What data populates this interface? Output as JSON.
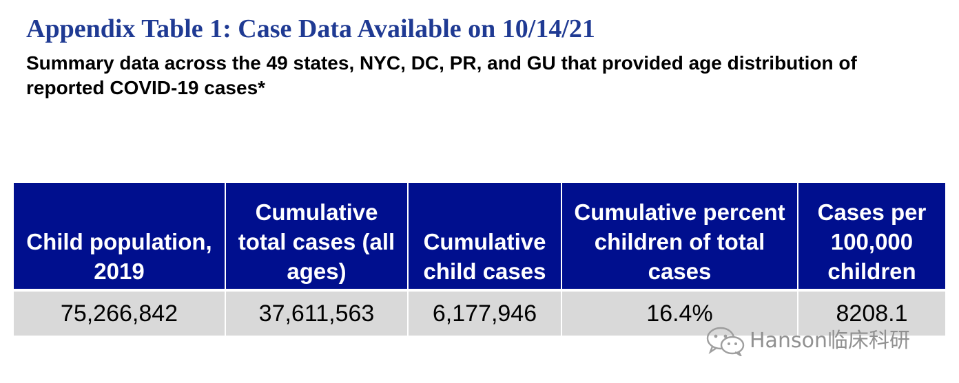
{
  "header": {
    "title": "Appendix Table 1: Case Data Available on 10/14/21",
    "subtitle": "Summary data across the 49 states, NYC, DC, PR, and GU that provided age distribution of reported COVID-19 cases*"
  },
  "table": {
    "columns": [
      "Child population, 2019",
      "Cumulative total cases (all ages)",
      "Cumulative child cases",
      "Cumulative percent children of total cases",
      "Cases per 100,000 children"
    ],
    "rows": [
      [
        "75,266,842",
        "37,611,563",
        "6,177,946",
        "16.4%",
        "8208.1"
      ]
    ]
  },
  "watermark": {
    "text": "Hanson临床科研",
    "icon": "wechat-icon"
  },
  "colors": {
    "title": "#1f3a93",
    "header_bg": "#000f8e",
    "row_bg": "#d9d9d9"
  }
}
